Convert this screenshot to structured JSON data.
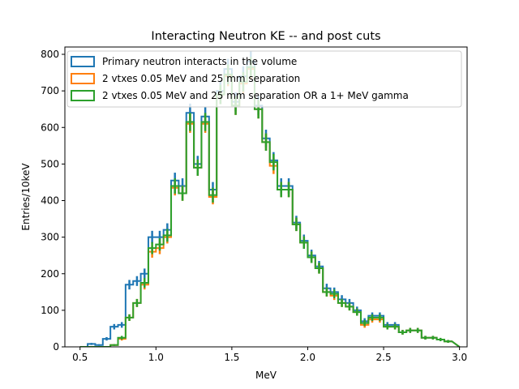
{
  "chart_data": {
    "type": "histogram-step",
    "title": "Interacting Neutron KE -- and post cuts",
    "xlabel": "MeV",
    "ylabel": "Entries/10keV",
    "xlim": [
      0.4,
      3.05
    ],
    "ylim": [
      0,
      820
    ],
    "x_ticks": [
      0.5,
      1.0,
      1.5,
      2.0,
      2.5,
      3.0
    ],
    "x_tick_labels": [
      "0.5",
      "1.0",
      "1.5",
      "2.0",
      "2.5",
      "3.0"
    ],
    "y_ticks": [
      0,
      100,
      200,
      300,
      400,
      500,
      600,
      700,
      800
    ],
    "y_tick_labels": [
      "0",
      "100",
      "200",
      "300",
      "400",
      "500",
      "600",
      "700",
      "800"
    ],
    "grid": false,
    "legend_placement": "top-left",
    "x_edges": [
      0.5,
      0.55,
      0.6,
      0.65,
      0.7,
      0.75,
      0.8,
      0.85,
      0.9,
      0.95,
      1.0,
      1.05,
      1.1,
      1.15,
      1.2,
      1.25,
      1.3,
      1.35,
      1.4,
      1.45,
      1.5,
      1.55,
      1.6,
      1.65,
      1.7,
      1.75,
      1.8,
      1.85,
      1.9,
      1.95,
      2.0,
      2.05,
      2.1,
      2.15,
      2.2,
      2.25,
      2.3,
      2.35,
      2.4,
      2.45,
      2.5,
      2.55,
      2.6,
      2.65,
      2.7,
      2.75,
      2.8,
      2.85,
      2.9,
      2.95
    ],
    "series": [
      {
        "name": "Primary neutron interacts in the volume",
        "color": "#1f77b4",
        "values": [
          0,
          8,
          5,
          22,
          55,
          60,
          170,
          180,
          200,
          300,
          300,
          320,
          455,
          440,
          640,
          500,
          630,
          430,
          700,
          760,
          670,
          740,
          780,
          660,
          570,
          510,
          440,
          440,
          340,
          290,
          250,
          220,
          160,
          150,
          130,
          120,
          100,
          70,
          85,
          85,
          60,
          60,
          40,
          45,
          45,
          25,
          25,
          20,
          15
        ]
      },
      {
        "name": "2 vtxes 0.05 MeV and 25 mm separation",
        "color": "#ff7f0e",
        "values": [
          0,
          0,
          0,
          0,
          5,
          22,
          80,
          120,
          170,
          260,
          270,
          300,
          435,
          420,
          610,
          490,
          610,
          410,
          690,
          740,
          660,
          720,
          760,
          650,
          560,
          495,
          430,
          430,
          335,
          285,
          245,
          215,
          150,
          140,
          120,
          110,
          95,
          60,
          75,
          75,
          55,
          55,
          40,
          45,
          45,
          25,
          25,
          20,
          15
        ]
      },
      {
        "name": "2 vtxes 0.05 MeV and 25 mm separation OR a 1+ MeV gamma",
        "color": "#2ca02c",
        "values": [
          0,
          0,
          0,
          0,
          5,
          25,
          80,
          120,
          175,
          270,
          280,
          305,
          440,
          420,
          615,
          490,
          615,
          415,
          690,
          745,
          660,
          725,
          765,
          650,
          560,
          505,
          430,
          430,
          335,
          285,
          245,
          215,
          150,
          145,
          120,
          110,
          95,
          65,
          80,
          80,
          55,
          55,
          40,
          45,
          45,
          25,
          25,
          20,
          15
        ]
      }
    ]
  }
}
